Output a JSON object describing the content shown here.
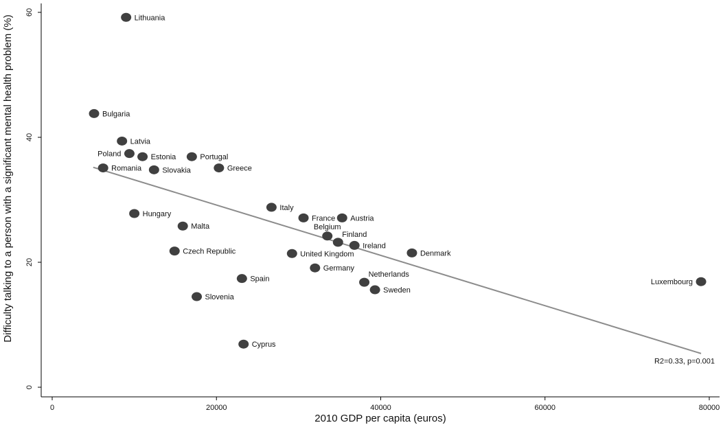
{
  "chart_data": {
    "type": "scatter",
    "xlabel": "2010 GDP per capita (euros)",
    "ylabel": "Difficulty talking to a person with a significant mental health problem (%)",
    "xlim": [
      0,
      80000
    ],
    "ylim": [
      0,
      60
    ],
    "x_ticks": [
      0,
      20000,
      40000,
      60000,
      80000
    ],
    "x_tick_labels": [
      "0",
      "20000",
      "40000",
      "60000",
      "80000"
    ],
    "y_ticks": [
      0,
      20,
      40,
      60
    ],
    "y_tick_labels": [
      "0",
      "20",
      "40",
      "60"
    ],
    "grid": false,
    "marker_color": "#404040",
    "line_color": "#8c8c8c",
    "points": [
      {
        "label": "Lithuania",
        "x": 9000,
        "y": 59.2,
        "label_side": "right"
      },
      {
        "label": "Bulgaria",
        "x": 5100,
        "y": 43.8,
        "label_side": "right"
      },
      {
        "label": "Latvia",
        "x": 8500,
        "y": 39.4,
        "label_side": "right"
      },
      {
        "label": "Poland",
        "x": 9400,
        "y": 37.4,
        "label_side": "left"
      },
      {
        "label": "Estonia",
        "x": 11000,
        "y": 36.9,
        "label_side": "right"
      },
      {
        "label": "Portugal",
        "x": 17000,
        "y": 36.9,
        "label_side": "right"
      },
      {
        "label": "Romania",
        "x": 6200,
        "y": 35.1,
        "label_side": "right"
      },
      {
        "label": "Slovakia",
        "x": 12400,
        "y": 34.8,
        "label_side": "right"
      },
      {
        "label": "Greece",
        "x": 20300,
        "y": 35.1,
        "label_side": "right"
      },
      {
        "label": "Italy",
        "x": 26700,
        "y": 28.8,
        "label_side": "right"
      },
      {
        "label": "Hungary",
        "x": 10000,
        "y": 27.8,
        "label_side": "right"
      },
      {
        "label": "France",
        "x": 30600,
        "y": 27.1,
        "label_side": "right"
      },
      {
        "label": "Austria",
        "x": 35300,
        "y": 27.1,
        "label_side": "right"
      },
      {
        "label": "Malta",
        "x": 15900,
        "y": 25.8,
        "label_side": "right"
      },
      {
        "label": "Belgium",
        "x": 33500,
        "y": 24.2,
        "label_side": "above"
      },
      {
        "label": "Finland",
        "x": 34800,
        "y": 23.2,
        "label_side": "right-up"
      },
      {
        "label": "Ireland",
        "x": 36800,
        "y": 22.7,
        "label_side": "right"
      },
      {
        "label": "Czech Republic",
        "x": 14900,
        "y": 21.8,
        "label_side": "right"
      },
      {
        "label": "United Kingdom",
        "x": 29200,
        "y": 21.4,
        "label_side": "right"
      },
      {
        "label": "Denmark",
        "x": 43800,
        "y": 21.5,
        "label_side": "right"
      },
      {
        "label": "Germany",
        "x": 32000,
        "y": 19.1,
        "label_side": "right"
      },
      {
        "label": "Spain",
        "x": 23100,
        "y": 17.4,
        "label_side": "right"
      },
      {
        "label": "Netherlands",
        "x": 38000,
        "y": 16.8,
        "label_side": "right-up"
      },
      {
        "label": "Luxembourg",
        "x": 79000,
        "y": 16.9,
        "label_side": "left"
      },
      {
        "label": "Sweden",
        "x": 39300,
        "y": 15.6,
        "label_side": "right"
      },
      {
        "label": "Slovenia",
        "x": 17600,
        "y": 14.5,
        "label_side": "right"
      },
      {
        "label": "Cyprus",
        "x": 23300,
        "y": 6.9,
        "label_side": "right"
      }
    ],
    "fit_line": {
      "x": [
        5000,
        79000
      ],
      "y": [
        35.2,
        5.4
      ]
    },
    "annotation": {
      "text": "R2=0.33, p=0.001",
      "x": 79000,
      "y": 3.8
    }
  }
}
